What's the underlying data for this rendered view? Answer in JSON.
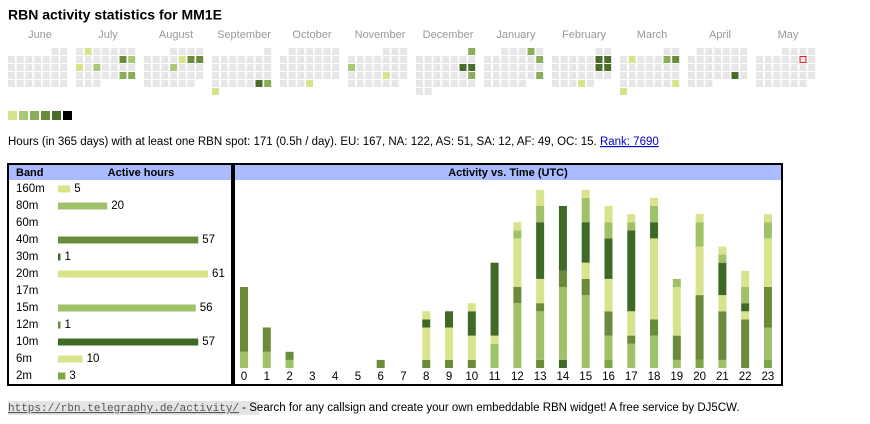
{
  "title": "RBN activity statistics for MM1E",
  "calendar": {
    "empty_color": "#e6e6e6",
    "legend_colors": [
      "#d9e38b",
      "#a8c878",
      "#8aad57",
      "#6a8b3a",
      "#4a6e2a",
      "#000000"
    ],
    "today": {
      "month": 11,
      "day": 10,
      "color": "#dd2222"
    },
    "months": [
      {
        "name": "June",
        "first_weekday": 5,
        "days": 30,
        "active": []
      },
      {
        "name": "July",
        "first_weekday": 0,
        "days": 31,
        "active": [
          [
            2,
            1
          ],
          [
            13,
            4
          ],
          [
            14,
            2
          ],
          [
            15,
            1
          ],
          [
            17,
            2
          ],
          [
            27,
            3
          ],
          [
            28,
            3
          ]
        ]
      },
      {
        "name": "August",
        "first_weekday": 3,
        "days": 31,
        "active": [
          [
            9,
            1
          ],
          [
            10,
            4
          ],
          [
            11,
            4
          ],
          [
            15,
            2
          ]
        ]
      },
      {
        "name": "September",
        "first_weekday": 6,
        "days": 30,
        "active": [
          [
            28,
            5
          ],
          [
            29,
            3
          ],
          [
            30,
            1
          ]
        ]
      },
      {
        "name": "October",
        "first_weekday": 1,
        "days": 31,
        "active": [
          [
            31,
            1
          ]
        ]
      },
      {
        "name": "November",
        "first_weekday": 4,
        "days": 30,
        "active": [
          [
            11,
            2
          ],
          [
            22,
            1
          ]
        ]
      },
      {
        "name": "December",
        "first_weekday": 6,
        "days": 31,
        "active": [
          [
            1,
            3
          ],
          [
            14,
            5
          ],
          [
            15,
            5
          ],
          [
            22,
            3
          ]
        ]
      },
      {
        "name": "January",
        "first_weekday": 2,
        "days": 31,
        "active": [
          [
            4,
            3
          ],
          [
            12,
            3
          ],
          [
            26,
            3
          ]
        ]
      },
      {
        "name": "February",
        "first_weekday": 5,
        "days": 28,
        "active": [
          [
            8,
            5
          ],
          [
            9,
            5
          ],
          [
            15,
            5
          ],
          [
            16,
            5
          ],
          [
            27,
            1
          ]
        ]
      },
      {
        "name": "March",
        "first_weekday": 5,
        "days": 31,
        "active": [
          [
            4,
            1
          ],
          [
            8,
            3
          ],
          [
            9,
            4
          ],
          [
            30,
            1
          ],
          [
            31,
            1
          ]
        ]
      },
      {
        "name": "April",
        "first_weekday": 1,
        "days": 30,
        "active": [
          [
            26,
            5
          ]
        ]
      },
      {
        "name": "May",
        "first_weekday": 3,
        "days": 31,
        "active": []
      }
    ]
  },
  "summary": {
    "text": "Hours (in 365 days) with at least one RBN spot: 171 (0.5h / day). EU: 167, NA: 122, AS: 51, SA: 12, AF: 49, OC: 15.",
    "link": "Rank: 7690"
  },
  "chart_data": [
    {
      "type": "hbar",
      "headers": [
        "Band",
        "Active hours"
      ],
      "categories": [
        "160m",
        "80m",
        "60m",
        "40m",
        "30m",
        "20m",
        "17m",
        "15m",
        "12m",
        "10m",
        "6m",
        "2m"
      ],
      "values": [
        5,
        20,
        null,
        57,
        1,
        61,
        null,
        56,
        1,
        57,
        10,
        3
      ],
      "colors": [
        "#d9e38b",
        "#9fc269",
        "#9fc269",
        "#6a8b3a",
        "#3f6a26",
        "#d9e38b",
        "#d9e38b",
        "#9fc269",
        "#6a8b3a",
        "#3f6a26",
        "#d9e38b",
        "#7ea548"
      ]
    },
    {
      "type": "stacked_bar",
      "title": "Activity vs. Time (UTC)",
      "categories": [
        "0",
        "1",
        "2",
        "3",
        "4",
        "5",
        "6",
        "7",
        "8",
        "9",
        "10",
        "11",
        "12",
        "13",
        "14",
        "15",
        "16",
        "17",
        "18",
        "19",
        "20",
        "21",
        "22",
        "23"
      ],
      "series": [
        {
          "name": "12m",
          "color": "#6a8b3a",
          "values": [
            0,
            0,
            0,
            0,
            0,
            0,
            0,
            0,
            0,
            0,
            0,
            0,
            0,
            1,
            0,
            0,
            0,
            0,
            0,
            0,
            0,
            0,
            0,
            0
          ]
        },
        {
          "name": "30m",
          "color": "#3f6a26",
          "values": [
            0,
            0,
            0,
            0,
            0,
            0,
            0,
            0,
            0,
            0,
            0,
            0,
            0,
            0,
            1,
            0,
            0,
            0,
            0,
            0,
            0,
            0,
            0,
            0
          ]
        },
        {
          "name": "2m",
          "color": "#7ea548",
          "values": [
            0,
            0,
            0,
            0,
            0,
            0,
            0,
            0,
            0,
            0,
            0,
            0,
            0,
            0,
            0,
            0,
            1,
            0,
            0,
            0,
            1,
            0,
            0,
            1
          ]
        },
        {
          "name": "15m",
          "color": "#9fc269",
          "values": [
            2,
            2,
            1,
            0,
            0,
            0,
            0,
            0,
            0,
            0,
            0,
            3,
            8,
            6,
            9,
            9,
            3,
            3,
            4,
            1,
            0,
            1,
            0,
            4
          ]
        },
        {
          "name": "40m",
          "color": "#6a8b3a",
          "values": [
            8,
            3,
            1,
            0,
            0,
            0,
            1,
            0,
            1,
            1,
            1,
            0,
            2,
            1,
            2,
            2,
            3,
            1,
            2,
            3,
            8,
            6,
            6,
            5
          ]
        },
        {
          "name": "20m",
          "color": "#d9e38b",
          "values": [
            0,
            0,
            0,
            0,
            0,
            0,
            0,
            0,
            4,
            4,
            3,
            1,
            6,
            3,
            0,
            2,
            4,
            3,
            10,
            6,
            6,
            2,
            1,
            6
          ]
        },
        {
          "name": "10m",
          "color": "#3f6a26",
          "values": [
            0,
            0,
            0,
            0,
            0,
            0,
            0,
            0,
            1,
            2,
            3,
            9,
            0,
            7,
            8,
            5,
            5,
            10,
            2,
            0,
            0,
            4,
            1,
            0
          ]
        },
        {
          "name": "80m",
          "color": "#9fc269",
          "values": [
            0,
            0,
            0,
            0,
            0,
            0,
            0,
            0,
            0,
            0,
            0,
            0,
            1,
            2,
            0,
            3,
            2,
            1,
            2,
            1,
            3,
            1,
            2,
            2
          ]
        },
        {
          "name": "6m",
          "color": "#d9e38b",
          "values": [
            0,
            0,
            0,
            0,
            0,
            0,
            0,
            0,
            1,
            0,
            1,
            0,
            0,
            2,
            0,
            1,
            2,
            0,
            0,
            0,
            1,
            0,
            2,
            0
          ]
        },
        {
          "name": "160m",
          "color": "#d9e38b",
          "values": [
            0,
            0,
            0,
            0,
            0,
            0,
            0,
            0,
            0,
            0,
            0,
            0,
            1,
            0,
            0,
            0,
            0,
            1,
            1,
            0,
            0,
            1,
            0,
            1
          ]
        }
      ]
    }
  ],
  "footer": {
    "url": "https://rbn.telegraphy.de/activity/",
    "text": " - Search for any callsign and create your own embeddable RBN widget! A free service by DJ5CW."
  }
}
